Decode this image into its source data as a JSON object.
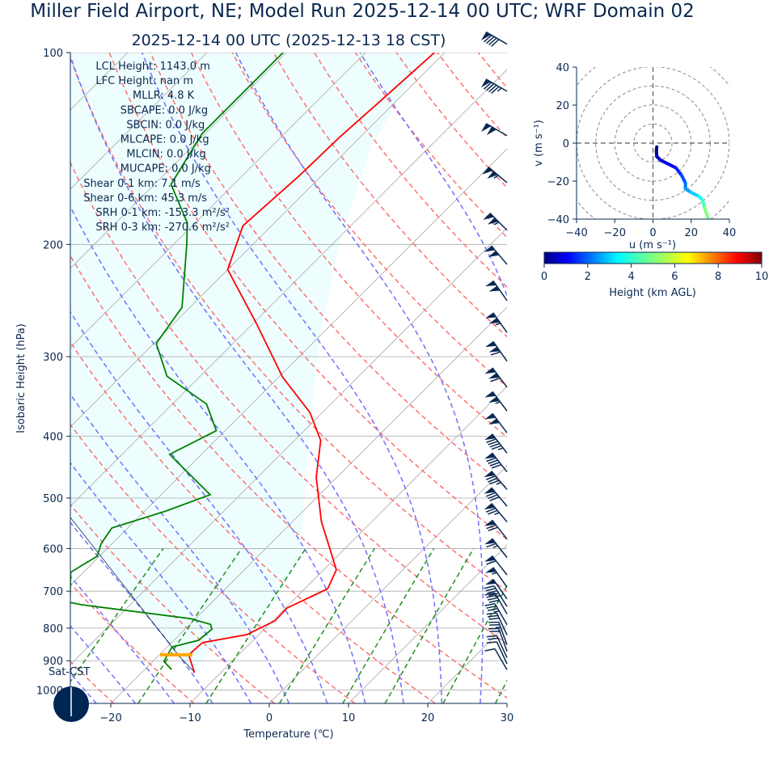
{
  "header": {
    "title": "Miller Field Airport, NE; Model Run 2025-12-14 00 UTC; WRF Domain 02",
    "subtitle": "2025-12-14 00 UTC  (2025-12-13 18 CST)"
  },
  "indices": [
    "LCL Height: 1143.0 m",
    "LFC Height: nan m",
    "MLLR: 4.8 K",
    "SBCAPE: 0.0 J/kg",
    "SBCIN: 0.0 J/kg",
    "MLCAPE: 0.0 J/kg",
    "MLCIN: 0.0 J/kg",
    "MUCAPE: 0.0 J/kg",
    "Shear 0-1 km: 7.1 m/s",
    "Shear 0-6 km: 45.3 m/s",
    "SRH 0-1 km: -153.3 m²/s²",
    "SRH 0-3 km: -270.6 m²/s²"
  ],
  "logo_text": "Sat-CST",
  "colors": {
    "text": "#0a2850",
    "temperature": "#ff0000",
    "dewpoint": "#008000",
    "lcl_marker": "#ffa500",
    "dry_adiabat": "#ff7070",
    "moist_adiabat": "#7070ff",
    "mixing_ratio": "#1f8f1f",
    "isotherm": "#aaaaaa",
    "shading": "#eefefe",
    "barb": "#0a2850"
  },
  "chart_data": [
    {
      "type": "line",
      "kind": "skew-T log-p",
      "xlabel": "Temperature (℃)",
      "ylabel": "Isobaric Height (hPa)",
      "xlim": [
        -25,
        30
      ],
      "ylim": [
        1050,
        100
      ],
      "y_scale": "log",
      "grid": true,
      "xticks": [
        "−20",
        "−10",
        "0",
        "10",
        "20",
        "30"
      ],
      "xtick_values": [
        -20,
        -10,
        0,
        10,
        20,
        30
      ],
      "yticks": [
        "100",
        "200",
        "300",
        "400",
        "500",
        "600",
        "700",
        "800",
        "900",
        "1000"
      ],
      "ytick_values": [
        100,
        200,
        300,
        400,
        500,
        600,
        700,
        800,
        900,
        1000
      ],
      "temperature": {
        "p": [
          940,
          881,
          843,
          819,
          779,
          744,
          714,
          694,
          648,
          612,
          544,
          464,
          406,
          367,
          323,
          266,
          219,
          187,
          156,
          136,
          119,
          100
        ],
        "T": [
          -13.3,
          -16.3,
          -16.1,
          -11.5,
          -9.7,
          -9.8,
          -8.2,
          -7.1,
          -8.4,
          -11.0,
          -16.4,
          -22.6,
          -26.7,
          -31.6,
          -39.5,
          -49.6,
          -60.0,
          -63.6,
          -62.8,
          -62.6,
          -62.0,
          -61.3
        ]
      },
      "dewpoint": {
        "p": [
          929,
          902,
          856,
          836,
          803,
          789,
          773,
          735,
          729,
          654,
          639,
          617,
          589,
          557,
          524,
          494,
          427,
          392,
          356,
          322,
          286,
          251,
          199,
          185,
          161,
          134,
          100
        ],
        "T": [
          -16.6,
          -18.6,
          -19.4,
          -16.9,
          -16.6,
          -17.4,
          -20.7,
          -36.2,
          -37.9,
          -41.6,
          -41.1,
          -40.3,
          -41.4,
          -42.0,
          -37.3,
          -33.8,
          -44.0,
          -41.1,
          -45.7,
          -54.2,
          -59.7,
          -61.0,
          -68.5,
          -71.0,
          -77.9,
          -80.4,
          -80.4
        ]
      },
      "lcl": {
        "p": 881,
        "T_range": [
          -17.5,
          -13.5
        ]
      },
      "wind_barbs": {
        "p": [
          930,
          910,
          890,
          870,
          850,
          820,
          790,
          760,
          740,
          720,
          690,
          660,
          620,
          580,
          545,
          515,
          485,
          455,
          425,
          395,
          365,
          335,
          305,
          275,
          245,
          215,
          190,
          160,
          135,
          115,
          97
        ],
        "speed_kt": [
          8,
          12,
          18,
          22,
          25,
          30,
          35,
          40,
          45,
          50,
          55,
          60,
          65,
          70,
          75,
          80,
          85,
          90,
          95,
          100,
          105,
          110,
          110,
          105,
          100,
          100,
          105,
          105,
          100,
          95,
          90
        ],
        "direction_deg": [
          330,
          335,
          335,
          340,
          340,
          335,
          330,
          330,
          328,
          325,
          325,
          322,
          322,
          322,
          320,
          320,
          320,
          322,
          322,
          323,
          323,
          323,
          325,
          325,
          325,
          320,
          315,
          310,
          300,
          300,
          300
        ]
      }
    },
    {
      "type": "line",
      "kind": "hodograph",
      "xlabel": "u (m s⁻¹)",
      "ylabel": "v (m s⁻¹)",
      "xlim": [
        -40,
        40
      ],
      "ylim": [
        -40,
        40
      ],
      "xticks": [
        "−40",
        "−20",
        "0",
        "20",
        "40"
      ],
      "yticks": [
        "40",
        "20",
        "0",
        "−20",
        "−40"
      ],
      "rings": [
        10,
        20,
        30,
        40
      ],
      "u": [
        2,
        1.8,
        2,
        4,
        8,
        12,
        15,
        17,
        17,
        20,
        24,
        26,
        27,
        29
      ],
      "v": [
        -2,
        -4,
        -7,
        -9,
        -11,
        -13,
        -17,
        -21,
        -24,
        -26,
        -28,
        -30,
        -34,
        -40
      ],
      "height_km": [
        0.1,
        0.3,
        0.6,
        0.9,
        1.2,
        1.6,
        2.0,
        2.4,
        2.8,
        3.3,
        3.9,
        4.4,
        5.0,
        5.6
      ],
      "colorbar": {
        "label": "Height (km AGL)",
        "colormap": "jet",
        "range": [
          0,
          10
        ],
        "ticks": [
          "0",
          "2",
          "4",
          "6",
          "8",
          "10"
        ]
      }
    }
  ]
}
